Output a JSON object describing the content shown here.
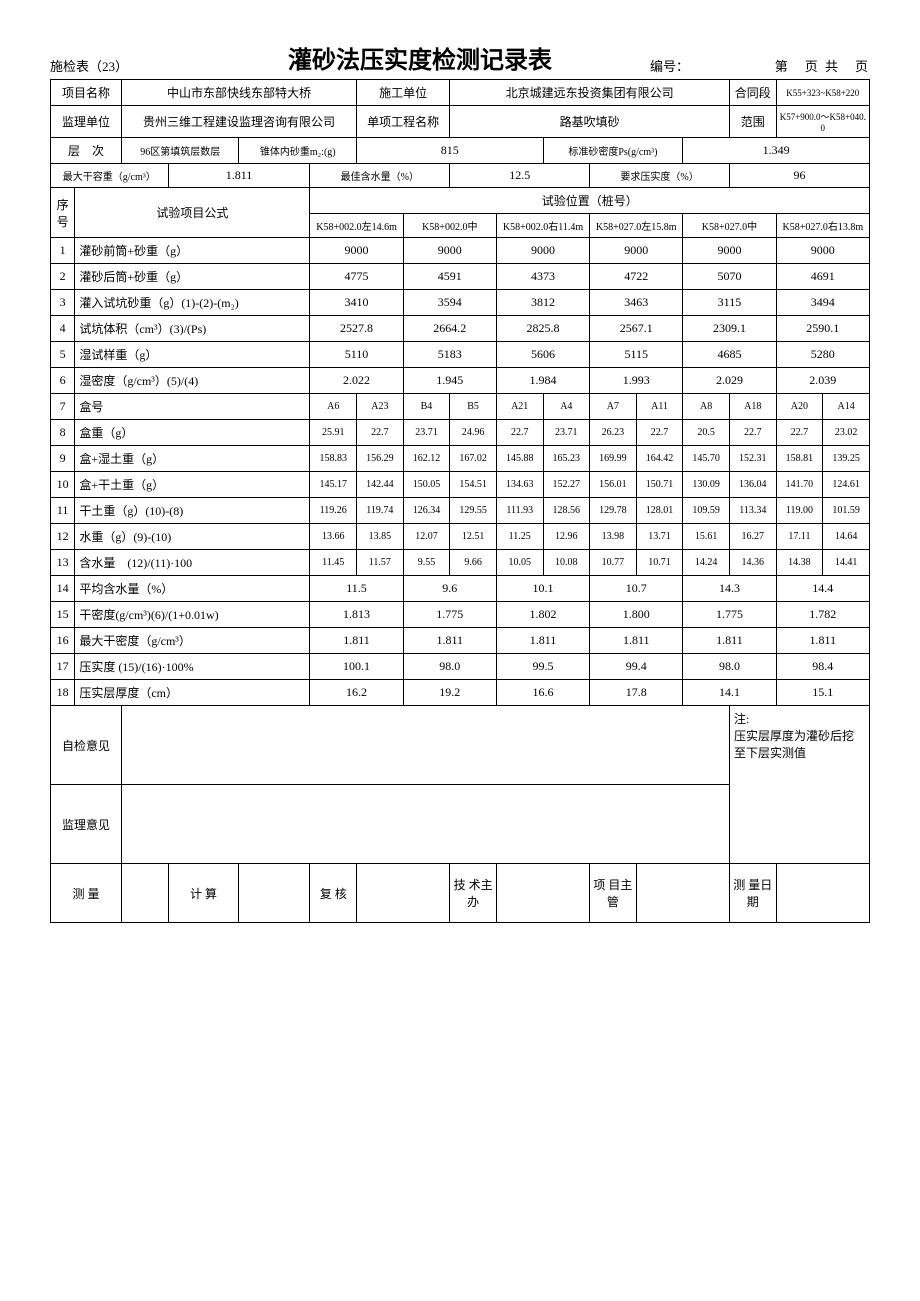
{
  "header": {
    "form_code": "施检表（23）",
    "title": "灌砂法压实度检测记录表",
    "serial_label": "编号：",
    "page_info": "第　页 共　页"
  },
  "info": {
    "project_name_label": "项目名称",
    "project_name": "中山市东部快线东部特大桥",
    "construction_unit_label": "施工单位",
    "construction_unit": "北京城建远东投资集团有限公司",
    "contract_label": "合同段",
    "contract": "K55+323~K58+220",
    "supervisor_label": "监理单位",
    "supervisor": "贵州三维工程建设监理咨询有限公司",
    "sub_project_label": "单项工程名称",
    "sub_project": "路基吹填砂",
    "range_label": "范围",
    "range": "K57+900.0～K58+040.0",
    "layer_label": "层　次",
    "layer": "96区第填筑层数层",
    "cone_label": "锥体内砂重m₂:(g)",
    "cone": "815",
    "std_density_label": "标准砂密度Ps(g/cm³)",
    "std_density": "1.349",
    "max_dry_label": "最大干容重（g/cm³）",
    "max_dry": "1.811",
    "opt_water_label": "最佳含水量（%）",
    "opt_water": "12.5",
    "req_comp_label": "要求压实度（%）",
    "req_comp": "96"
  },
  "table": {
    "seq_label": "序号",
    "formula_label": "试验项目公式",
    "position_label": "试验位置（桩号）",
    "positions": [
      "K58+002.0左14.6m",
      "K58+002.0中",
      "K58+002.0右11.4m",
      "K58+027.0左15.8m",
      "K58+027.0中",
      "K58+027.0右13.8m"
    ]
  },
  "rows_single": [
    {
      "n": "1",
      "label": "灌砂前筒+砂重（g）",
      "v": [
        "9000",
        "9000",
        "9000",
        "9000",
        "9000",
        "9000"
      ]
    },
    {
      "n": "2",
      "label": "灌砂后筒+砂重（g）",
      "v": [
        "4775",
        "4591",
        "4373",
        "4722",
        "5070",
        "4691"
      ]
    },
    {
      "n": "3",
      "label": "灌入试坑砂重（g）(1)-(2)-(m₂)",
      "v": [
        "3410",
        "3594",
        "3812",
        "3463",
        "3115",
        "3494"
      ]
    },
    {
      "n": "4",
      "label": "试坑体积（cm³）(3)/(Ps)",
      "v": [
        "2527.8",
        "2664.2",
        "2825.8",
        "2567.1",
        "2309.1",
        "2590.1"
      ]
    },
    {
      "n": "5",
      "label": "湿试样重（g）",
      "v": [
        "5110",
        "5183",
        "5606",
        "5115",
        "4685",
        "5280"
      ]
    },
    {
      "n": "6",
      "label": "湿密度（g/cm³）(5)/(4)",
      "v": [
        "2.022",
        "1.945",
        "1.984",
        "1.993",
        "2.029",
        "2.039"
      ]
    }
  ],
  "rows_double": [
    {
      "n": "7",
      "label": "盒号",
      "v": [
        "A6",
        "A23",
        "B4",
        "B5",
        "A21",
        "A4",
        "A7",
        "A11",
        "A8",
        "A18",
        "A20",
        "A14"
      ]
    },
    {
      "n": "8",
      "label": "盒重（g）",
      "v": [
        "25.91",
        "22.7",
        "23.71",
        "24.96",
        "22.7",
        "23.71",
        "26.23",
        "22.7",
        "20.5",
        "22.7",
        "22.7",
        "23.02"
      ]
    },
    {
      "n": "9",
      "label": "盒+湿土重（g）",
      "v": [
        "158.83",
        "156.29",
        "162.12",
        "167.02",
        "145.88",
        "165.23",
        "169.99",
        "164.42",
        "145.70",
        "152.31",
        "158.81",
        "139.25"
      ]
    },
    {
      "n": "10",
      "label": "盒+干土重（g）",
      "v": [
        "145.17",
        "142.44",
        "150.05",
        "154.51",
        "134.63",
        "152.27",
        "156.01",
        "150.71",
        "130.09",
        "136.04",
        "141.70",
        "124.61"
      ]
    },
    {
      "n": "11",
      "label": "干土重（g）(10)-(8)",
      "v": [
        "119.26",
        "119.74",
        "126.34",
        "129.55",
        "111.93",
        "128.56",
        "129.78",
        "128.01",
        "109.59",
        "113.34",
        "119.00",
        "101.59"
      ]
    },
    {
      "n": "12",
      "label": "水重（g）(9)-(10)",
      "v": [
        "13.66",
        "13.85",
        "12.07",
        "12.51",
        "11.25",
        "12.96",
        "13.98",
        "13.71",
        "15.61",
        "16.27",
        "17.11",
        "14.64"
      ]
    },
    {
      "n": "13",
      "label": "含水量　(12)/(11)·100",
      "v": [
        "11.45",
        "11.57",
        "9.55",
        "9.66",
        "10.05",
        "10.08",
        "10.77",
        "10.71",
        "14.24",
        "14.36",
        "14.38",
        "14.41"
      ]
    }
  ],
  "rows_single2": [
    {
      "n": "14",
      "label": "平均含水量（%）",
      "v": [
        "11.5",
        "9.6",
        "10.1",
        "10.7",
        "14.3",
        "14.4"
      ]
    },
    {
      "n": "15",
      "label": "干密度(g/cm³)(6)/(1+0.01w)",
      "v": [
        "1.813",
        "1.775",
        "1.802",
        "1.800",
        "1.775",
        "1.782"
      ]
    },
    {
      "n": "16",
      "label": "最大干密度（g/cm³）",
      "v": [
        "1.811",
        "1.811",
        "1.811",
        "1.811",
        "1.811",
        "1.811"
      ]
    },
    {
      "n": "17",
      "label": "压实度 (15)/(16)·100%",
      "v": [
        "100.1",
        "98.0",
        "99.5",
        "99.4",
        "98.0",
        "98.4"
      ]
    },
    {
      "n": "18",
      "label": "压实层厚度（cm）",
      "v": [
        "16.2",
        "19.2",
        "16.6",
        "17.8",
        "14.1",
        "15.1"
      ]
    }
  ],
  "footer": {
    "self_check_label": "自检意见",
    "note_label": "注:",
    "note_text": "压实层厚度为灌砂后挖至下层实测值",
    "supervise_label": "监理意见",
    "sig": {
      "measure": "测 量",
      "calc": "计 算",
      "review": "复 核",
      "tech": "技 术主 办",
      "pm": "项 目主 管",
      "date": "测 量日 期"
    }
  }
}
